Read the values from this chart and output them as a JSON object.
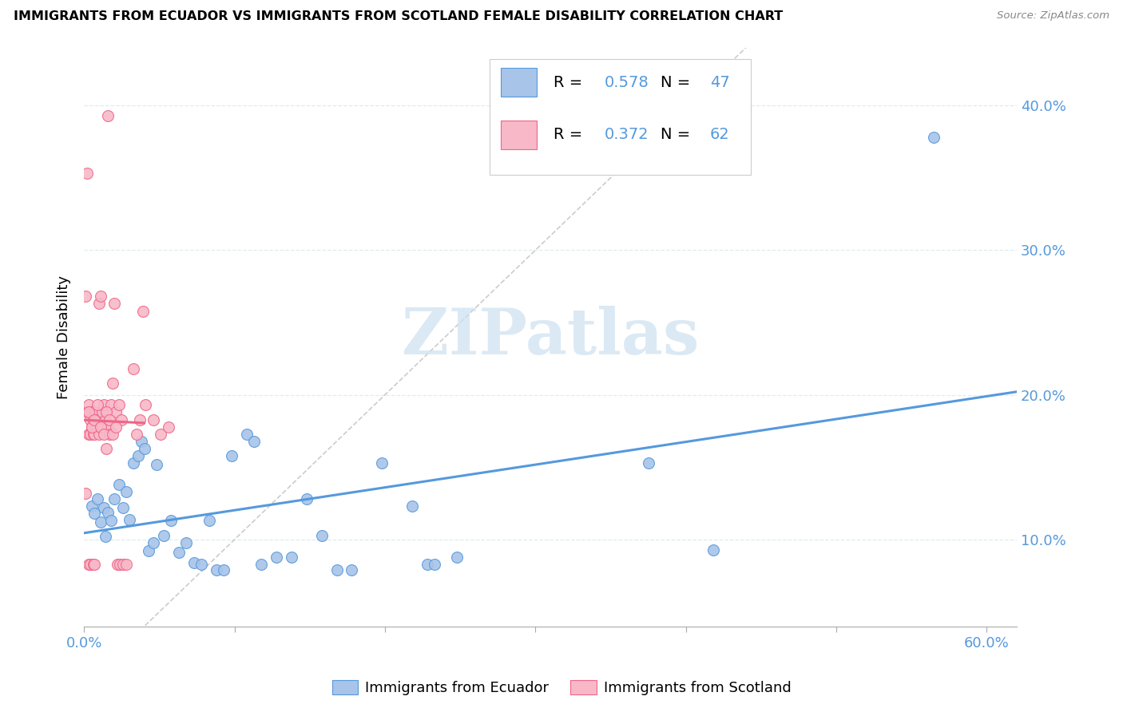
{
  "title": "IMMIGRANTS FROM ECUADOR VS IMMIGRANTS FROM SCOTLAND FEMALE DISABILITY CORRELATION CHART",
  "source": "Source: ZipAtlas.com",
  "ylabel": "Female Disability",
  "xlim": [
    0.0,
    0.62
  ],
  "ylim": [
    0.04,
    0.44
  ],
  "legend_ecuador": "Immigrants from Ecuador",
  "legend_scotland": "Immigrants from Scotland",
  "R_ecuador": "0.578",
  "N_ecuador": "47",
  "R_scotland": "0.372",
  "N_scotland": "62",
  "ecuador_face_color": "#a8c4e8",
  "scotland_face_color": "#f8b8c8",
  "trend_ecuador_color": "#5599dd",
  "trend_scotland_color": "#ee6688",
  "ref_line_color": "#cccccc",
  "legend_text_color": "#5599dd",
  "watermark_color": "#cce0f0",
  "grid_color": "#ddeeee",
  "tick_color": "#5599dd",
  "ecuador_scatter": [
    [
      0.005,
      0.123
    ],
    [
      0.007,
      0.118
    ],
    [
      0.009,
      0.128
    ],
    [
      0.011,
      0.112
    ],
    [
      0.013,
      0.122
    ],
    [
      0.014,
      0.102
    ],
    [
      0.016,
      0.119
    ],
    [
      0.018,
      0.113
    ],
    [
      0.02,
      0.128
    ],
    [
      0.023,
      0.138
    ],
    [
      0.026,
      0.122
    ],
    [
      0.028,
      0.133
    ],
    [
      0.03,
      0.114
    ],
    [
      0.033,
      0.153
    ],
    [
      0.036,
      0.158
    ],
    [
      0.038,
      0.168
    ],
    [
      0.04,
      0.163
    ],
    [
      0.043,
      0.092
    ],
    [
      0.046,
      0.098
    ],
    [
      0.048,
      0.152
    ],
    [
      0.053,
      0.103
    ],
    [
      0.058,
      0.113
    ],
    [
      0.063,
      0.091
    ],
    [
      0.068,
      0.098
    ],
    [
      0.073,
      0.084
    ],
    [
      0.078,
      0.083
    ],
    [
      0.083,
      0.113
    ],
    [
      0.088,
      0.079
    ],
    [
      0.093,
      0.079
    ],
    [
      0.098,
      0.158
    ],
    [
      0.108,
      0.173
    ],
    [
      0.113,
      0.168
    ],
    [
      0.118,
      0.083
    ],
    [
      0.128,
      0.088
    ],
    [
      0.138,
      0.088
    ],
    [
      0.148,
      0.128
    ],
    [
      0.158,
      0.103
    ],
    [
      0.168,
      0.079
    ],
    [
      0.178,
      0.079
    ],
    [
      0.198,
      0.153
    ],
    [
      0.218,
      0.123
    ],
    [
      0.228,
      0.083
    ],
    [
      0.233,
      0.083
    ],
    [
      0.248,
      0.088
    ],
    [
      0.375,
      0.153
    ],
    [
      0.418,
      0.093
    ],
    [
      0.565,
      0.378
    ]
  ],
  "scotland_scatter": [
    [
      0.001,
      0.132
    ],
    [
      0.002,
      0.188
    ],
    [
      0.003,
      0.193
    ],
    [
      0.003,
      0.173
    ],
    [
      0.004,
      0.183
    ],
    [
      0.004,
      0.173
    ],
    [
      0.005,
      0.188
    ],
    [
      0.005,
      0.178
    ],
    [
      0.006,
      0.183
    ],
    [
      0.006,
      0.173
    ],
    [
      0.007,
      0.188
    ],
    [
      0.007,
      0.173
    ],
    [
      0.008,
      0.188
    ],
    [
      0.008,
      0.178
    ],
    [
      0.009,
      0.183
    ],
    [
      0.009,
      0.178
    ],
    [
      0.01,
      0.263
    ],
    [
      0.01,
      0.173
    ],
    [
      0.011,
      0.183
    ],
    [
      0.011,
      0.178
    ],
    [
      0.012,
      0.188
    ],
    [
      0.013,
      0.193
    ],
    [
      0.014,
      0.183
    ],
    [
      0.015,
      0.163
    ],
    [
      0.016,
      0.178
    ],
    [
      0.017,
      0.173
    ],
    [
      0.018,
      0.193
    ],
    [
      0.019,
      0.208
    ],
    [
      0.02,
      0.263
    ],
    [
      0.021,
      0.188
    ],
    [
      0.023,
      0.193
    ],
    [
      0.025,
      0.183
    ],
    [
      0.002,
      0.353
    ],
    [
      0.011,
      0.268
    ],
    [
      0.016,
      0.393
    ],
    [
      0.001,
      0.268
    ],
    [
      0.003,
      0.083
    ],
    [
      0.004,
      0.083
    ],
    [
      0.006,
      0.083
    ],
    [
      0.007,
      0.083
    ],
    [
      0.022,
      0.083
    ],
    [
      0.024,
      0.083
    ],
    [
      0.026,
      0.083
    ],
    [
      0.028,
      0.083
    ],
    [
      0.033,
      0.218
    ],
    [
      0.035,
      0.173
    ],
    [
      0.037,
      0.183
    ],
    [
      0.039,
      0.258
    ],
    [
      0.041,
      0.193
    ],
    [
      0.046,
      0.183
    ],
    [
      0.051,
      0.173
    ],
    [
      0.056,
      0.178
    ],
    [
      0.003,
      0.188
    ],
    [
      0.005,
      0.178
    ],
    [
      0.007,
      0.183
    ],
    [
      0.009,
      0.193
    ],
    [
      0.011,
      0.178
    ],
    [
      0.013,
      0.173
    ],
    [
      0.015,
      0.188
    ],
    [
      0.017,
      0.183
    ],
    [
      0.019,
      0.173
    ],
    [
      0.021,
      0.178
    ]
  ]
}
